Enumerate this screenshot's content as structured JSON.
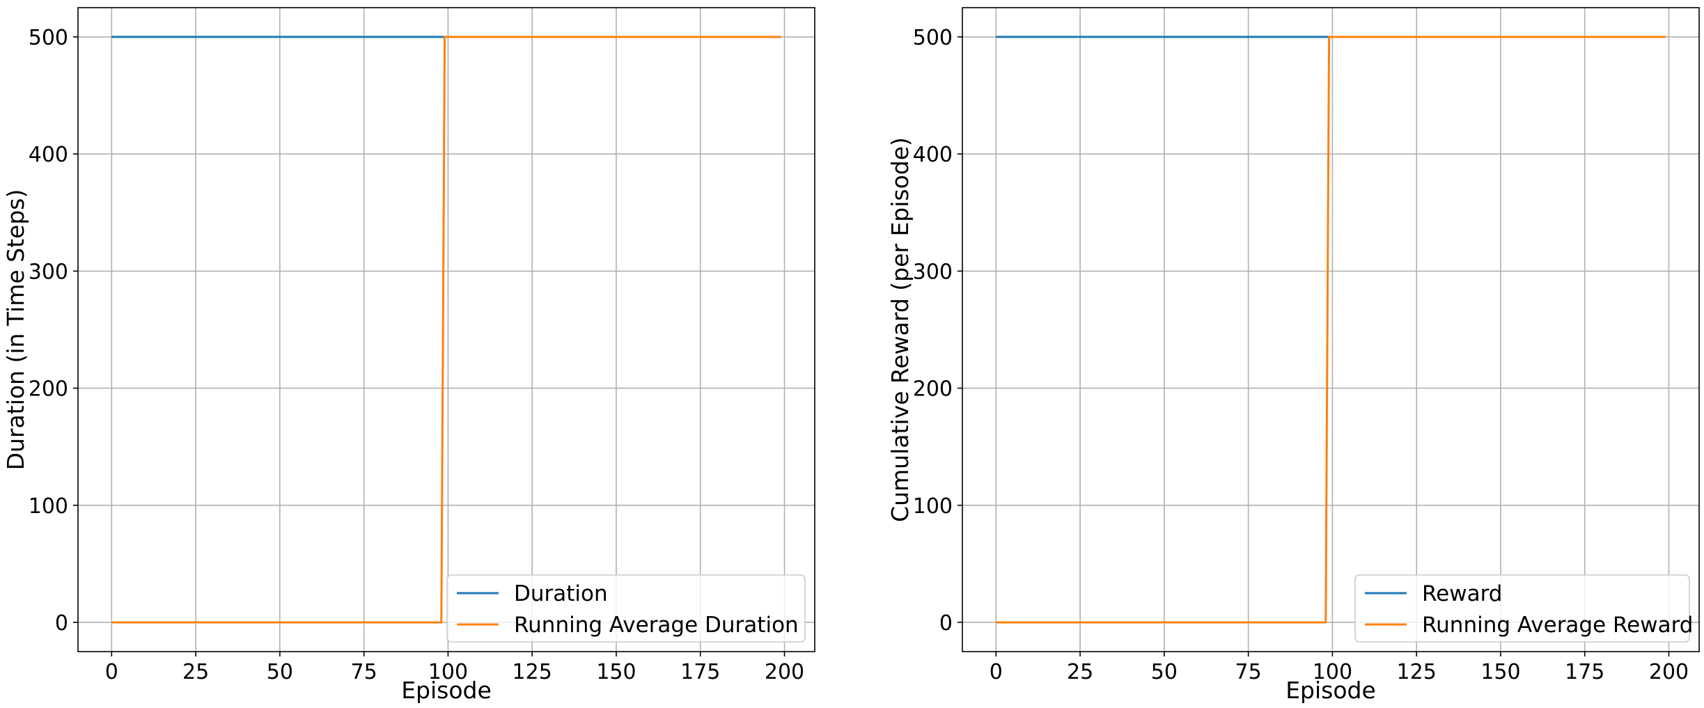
{
  "chart_data": [
    {
      "type": "line",
      "xlabel": "Episode",
      "ylabel": "Duration (in Time Steps)",
      "xlim": [
        -10,
        209
      ],
      "ylim": [
        -25,
        525
      ],
      "xticks": [
        0,
        25,
        50,
        75,
        100,
        125,
        150,
        175,
        200
      ],
      "yticks": [
        0,
        100,
        200,
        300,
        400,
        500
      ],
      "grid": true,
      "legend_position": "lower right",
      "series": [
        {
          "name": "Duration",
          "color": "#1f77b4",
          "points": [
            [
              0,
              500
            ],
            [
              199,
              500
            ]
          ]
        },
        {
          "name": "Running Average Duration",
          "color": "#ff7f0e",
          "points": [
            [
              0,
              0
            ],
            [
              98,
              0
            ],
            [
              99,
              500
            ],
            [
              199,
              500
            ]
          ]
        }
      ]
    },
    {
      "type": "line",
      "xlabel": "Episode",
      "ylabel": "Cumulative Reward (per Episode)",
      "xlim": [
        -10,
        209
      ],
      "ylim": [
        -25,
        525
      ],
      "xticks": [
        0,
        25,
        50,
        75,
        100,
        125,
        150,
        175,
        200
      ],
      "yticks": [
        0,
        100,
        200,
        300,
        400,
        500
      ],
      "grid": true,
      "legend_position": "lower right",
      "series": [
        {
          "name": "Reward",
          "color": "#1f77b4",
          "points": [
            [
              0,
              500
            ],
            [
              199,
              500
            ]
          ]
        },
        {
          "name": "Running Average Reward",
          "color": "#ff7f0e",
          "points": [
            [
              0,
              0
            ],
            [
              98,
              0
            ],
            [
              99,
              500
            ],
            [
              199,
              500
            ]
          ]
        }
      ]
    }
  ]
}
